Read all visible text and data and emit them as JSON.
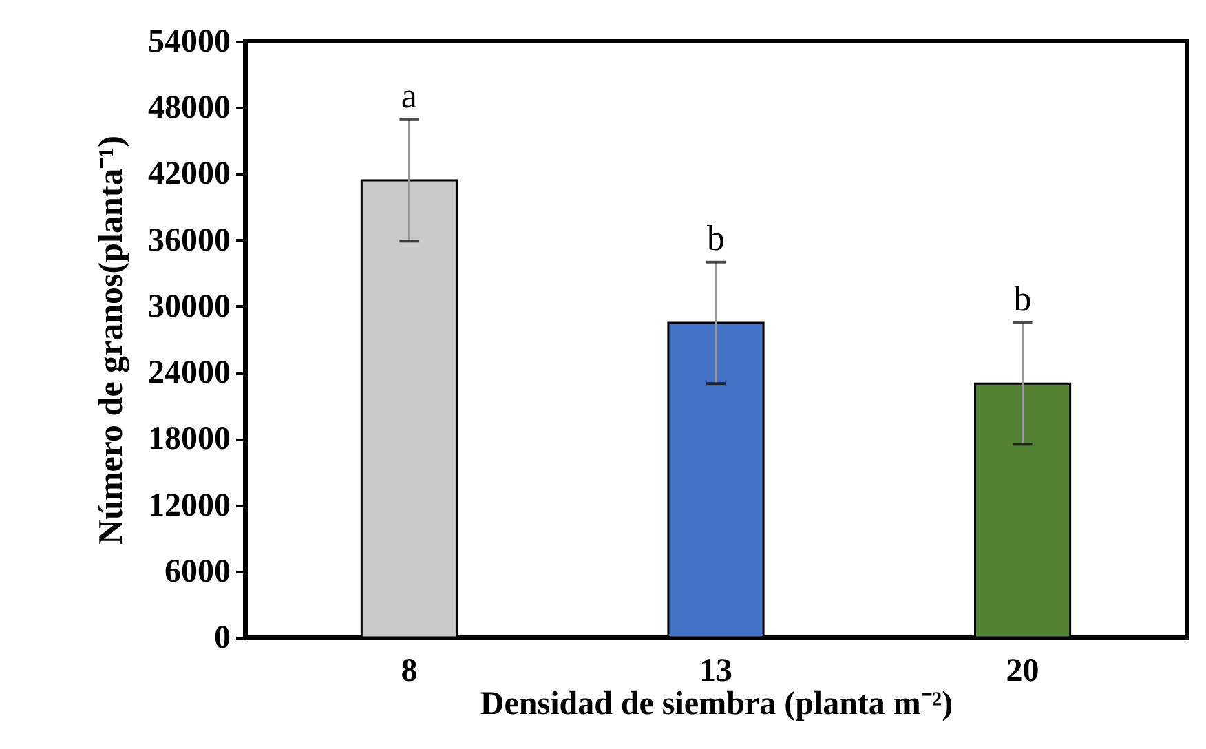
{
  "chart_data": {
    "type": "bar",
    "xlabel": "Densidad de siembra (planta m⁻²)",
    "ylabel": "Número de granos(planta⁻¹)",
    "categories": [
      "8",
      "13",
      "20"
    ],
    "values": [
      41400,
      28500,
      23000
    ],
    "colors": [
      "#c9c9c9",
      "#4472c4",
      "#548235"
    ],
    "errors": [
      5500,
      5500,
      5500
    ],
    "ylim": [
      0,
      54000
    ],
    "yticks": [
      0,
      6000,
      12000,
      18000,
      24000,
      30000,
      36000,
      42000,
      48000,
      54000
    ],
    "grid": false,
    "legend": false,
    "annotations": [
      {
        "text": "a",
        "x": "8",
        "y": 46900
      },
      {
        "text": "b",
        "x": "13",
        "y": 34000
      },
      {
        "text": "b",
        "x": "20",
        "y": 28500
      }
    ]
  }
}
